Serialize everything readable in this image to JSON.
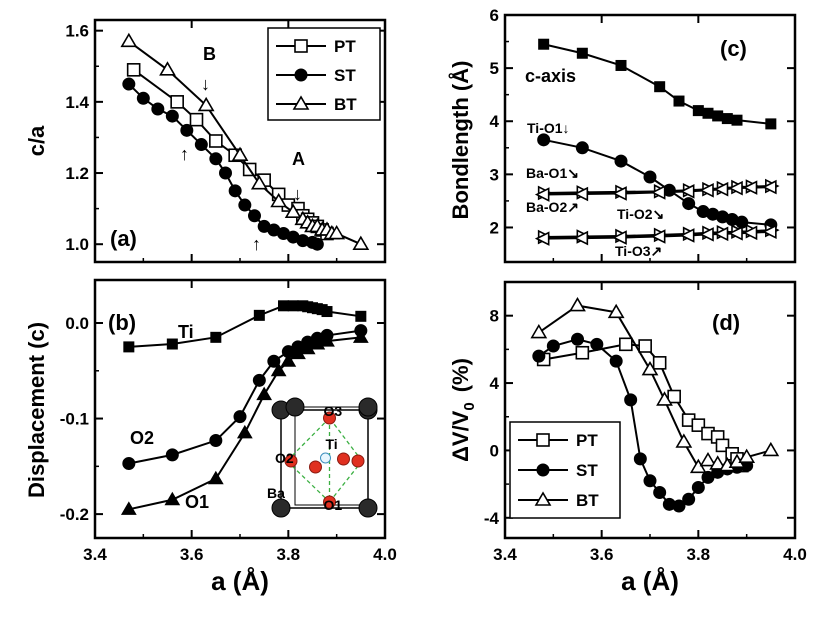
{
  "chart_data": [
    {
      "type": "line",
      "panel": "(a)",
      "ylabel": "c/a",
      "xlim": [
        3.4,
        4.0
      ],
      "ylim": [
        0.95,
        1.63
      ],
      "xticks": [
        "3.4",
        "3.6",
        "3.8",
        "4.0"
      ],
      "yticks": [
        {
          "v": 1.0,
          "t": "1.0"
        },
        {
          "v": 1.2,
          "t": "1.2"
        },
        {
          "v": 1.4,
          "t": "1.4"
        },
        {
          "v": 1.6,
          "t": "1.6"
        }
      ],
      "legend": "top-right",
      "series": [
        {
          "name": "PT",
          "marker": "open-square",
          "x": [
            3.48,
            3.57,
            3.61,
            3.65,
            3.69,
            3.72,
            3.75,
            3.78,
            3.8,
            3.82,
            3.83,
            3.84,
            3.85,
            3.86,
            3.87,
            3.88
          ],
          "y": [
            1.49,
            1.4,
            1.35,
            1.29,
            1.25,
            1.21,
            1.18,
            1.14,
            1.11,
            1.1,
            1.08,
            1.07,
            1.06,
            1.05,
            1.04,
            1.03
          ]
        },
        {
          "name": "ST",
          "marker": "filled-circle",
          "x": [
            3.47,
            3.5,
            3.53,
            3.56,
            3.59,
            3.62,
            3.65,
            3.67,
            3.69,
            3.71,
            3.73,
            3.75,
            3.77,
            3.79,
            3.81,
            3.83,
            3.85,
            3.86
          ],
          "y": [
            1.45,
            1.41,
            1.38,
            1.36,
            1.32,
            1.28,
            1.24,
            1.2,
            1.15,
            1.11,
            1.08,
            1.05,
            1.04,
            1.03,
            1.02,
            1.01,
            1.005,
            1.0
          ]
        },
        {
          "name": "BT",
          "marker": "open-triangle",
          "x": [
            3.47,
            3.55,
            3.63,
            3.7,
            3.74,
            3.78,
            3.81,
            3.83,
            3.84,
            3.85,
            3.86,
            3.87,
            3.88,
            3.89,
            3.9,
            3.95
          ],
          "y": [
            1.57,
            1.49,
            1.39,
            1.25,
            1.17,
            1.12,
            1.09,
            1.07,
            1.06,
            1.05,
            1.05,
            1.04,
            1.04,
            1.03,
            1.03,
            1.0
          ]
        }
      ],
      "annotations": [
        {
          "text": "B",
          "arrow": "↓"
        },
        {
          "text": "A",
          "arrow": "↓"
        },
        {
          "text": "",
          "arrow": "↑"
        },
        {
          "text": "",
          "arrow": "↑"
        }
      ]
    },
    {
      "type": "line",
      "panel": "(b)",
      "ylabel": "Displacement  (c)",
      "xlabel": "a (Å)",
      "xlim": [
        3.4,
        4.0
      ],
      "ylim": [
        -0.225,
        0.045
      ],
      "xticks": [
        "3.4",
        "3.6",
        "3.8",
        "4.0"
      ],
      "yticks": [
        {
          "v": 0.0,
          "t": "0.0"
        },
        {
          "v": -0.1,
          "t": "-0.1"
        },
        {
          "v": -0.2,
          "t": "-0.2"
        }
      ],
      "series": [
        {
          "name": "Ti",
          "marker": "filled-square",
          "x": [
            3.47,
            3.56,
            3.65,
            3.74,
            3.79,
            3.81,
            3.83,
            3.84,
            3.85,
            3.86,
            3.87,
            3.88,
            3.95
          ],
          "y": [
            -0.025,
            -0.022,
            -0.015,
            0.008,
            0.018,
            0.018,
            0.018,
            0.017,
            0.016,
            0.015,
            0.014,
            0.012,
            0.007
          ]
        },
        {
          "name": "O2",
          "marker": "filled-circle",
          "x": [
            3.47,
            3.56,
            3.65,
            3.7,
            3.74,
            3.77,
            3.8,
            3.82,
            3.84,
            3.86,
            3.88,
            3.95
          ],
          "y": [
            -0.147,
            -0.138,
            -0.123,
            -0.098,
            -0.06,
            -0.04,
            -0.03,
            -0.025,
            -0.02,
            -0.016,
            -0.013,
            -0.008
          ]
        },
        {
          "name": "O1",
          "marker": "filled-triangle",
          "x": [
            3.47,
            3.56,
            3.65,
            3.71,
            3.75,
            3.78,
            3.8,
            3.82,
            3.84,
            3.86,
            3.88,
            3.95
          ],
          "y": [
            -0.195,
            -0.185,
            -0.163,
            -0.115,
            -0.075,
            -0.05,
            -0.04,
            -0.032,
            -0.027,
            -0.022,
            -0.019,
            -0.015
          ]
        }
      ],
      "inset": {
        "labels": [
          "O3",
          "Ti",
          "O2",
          "Ba",
          "O1"
        ]
      }
    },
    {
      "type": "line",
      "panel": "(c)",
      "ylabel": "Bondlength  (Å)",
      "xlim": [
        3.4,
        4.0
      ],
      "ylim": [
        1.35,
        6.0
      ],
      "xticks": [
        "3.4",
        "3.6",
        "3.8",
        "4.0"
      ],
      "yticks": [
        {
          "v": 2,
          "t": "2"
        },
        {
          "v": 3,
          "t": "3"
        },
        {
          "v": 4,
          "t": "4"
        },
        {
          "v": 5,
          "t": "5"
        },
        {
          "v": 6,
          "t": "6"
        }
      ],
      "series": [
        {
          "name": "c-axis",
          "marker": "filled-square",
          "x": [
            3.48,
            3.56,
            3.64,
            3.72,
            3.76,
            3.8,
            3.82,
            3.84,
            3.86,
            3.88,
            3.95
          ],
          "y": [
            5.45,
            5.28,
            5.05,
            4.65,
            4.38,
            4.2,
            4.15,
            4.1,
            4.05,
            4.02,
            3.95
          ]
        },
        {
          "name": "Ti-O1↓",
          "marker": "filled-circle",
          "x": [
            3.48,
            3.56,
            3.64,
            3.7,
            3.74,
            3.78,
            3.81,
            3.83,
            3.85,
            3.87,
            3.89,
            3.95
          ],
          "y": [
            3.65,
            3.5,
            3.25,
            2.95,
            2.7,
            2.45,
            2.3,
            2.25,
            2.2,
            2.15,
            2.1,
            2.05
          ]
        },
        {
          "name": "Ba-O1↘",
          "marker": "right-triangle",
          "x": [
            3.48,
            3.56,
            3.64,
            3.72,
            3.78,
            3.82,
            3.85,
            3.88,
            3.91,
            3.95
          ],
          "y": [
            2.65,
            2.66,
            2.67,
            2.68,
            2.7,
            2.72,
            2.74,
            2.76,
            2.77,
            2.78
          ]
        },
        {
          "name": "Ba-O2↗",
          "marker": "left-triangle",
          "x": [
            3.48,
            3.56,
            3.64,
            3.72,
            3.78,
            3.82,
            3.85,
            3.88,
            3.91,
            3.95
          ],
          "y": [
            2.62,
            2.63,
            2.64,
            2.66,
            2.68,
            2.7,
            2.72,
            2.74,
            2.75,
            2.76
          ]
        },
        {
          "name": "Ti-O2↘",
          "marker": "right-triangle",
          "x": [
            3.48,
            3.56,
            3.64,
            3.72,
            3.78,
            3.82,
            3.85,
            3.88,
            3.91,
            3.95
          ],
          "y": [
            1.82,
            1.83,
            1.84,
            1.86,
            1.88,
            1.9,
            1.91,
            1.92,
            1.93,
            1.95
          ]
        },
        {
          "name": "Ti-O3↗",
          "marker": "left-triangle",
          "x": [
            3.48,
            3.56,
            3.64,
            3.72,
            3.78,
            3.82,
            3.85,
            3.88,
            3.91,
            3.95
          ],
          "y": [
            1.79,
            1.8,
            1.81,
            1.83,
            1.85,
            1.87,
            1.88,
            1.89,
            1.9,
            1.92
          ]
        }
      ]
    },
    {
      "type": "line",
      "panel": "(d)",
      "ylabel": "ΔV/V0  (%)",
      "ylabel_main": "ΔV/V",
      "ylabel_sub": "0",
      "ylabel_unit": "(%)",
      "xlabel": "a (Å)",
      "xlim": [
        3.4,
        4.0
      ],
      "ylim": [
        -5.2,
        10.0
      ],
      "xticks": [
        "3.4",
        "3.6",
        "3.8",
        "4.0"
      ],
      "yticks": [
        {
          "v": -4,
          "t": "-4"
        },
        {
          "v": 0,
          "t": "0"
        },
        {
          "v": 4,
          "t": "4"
        },
        {
          "v": 8,
          "t": "8"
        }
      ],
      "legend": "bottom-left",
      "series": [
        {
          "name": "PT",
          "marker": "open-square",
          "x": [
            3.48,
            3.56,
            3.65,
            3.69,
            3.72,
            3.75,
            3.78,
            3.8,
            3.82,
            3.84,
            3.85,
            3.87,
            3.88,
            3.89
          ],
          "y": [
            5.4,
            5.8,
            6.3,
            6.2,
            5.2,
            3.2,
            1.8,
            1.5,
            1.0,
            0.8,
            0.3,
            -0.2,
            -0.5,
            -0.9
          ]
        },
        {
          "name": "ST",
          "marker": "filled-circle",
          "x": [
            3.47,
            3.5,
            3.55,
            3.59,
            3.63,
            3.66,
            3.68,
            3.7,
            3.72,
            3.74,
            3.76,
            3.78,
            3.8,
            3.82,
            3.84,
            3.86,
            3.88,
            3.9
          ],
          "y": [
            5.6,
            6.2,
            6.6,
            6.3,
            5.3,
            3.0,
            -0.5,
            -1.8,
            -2.5,
            -3.2,
            -3.3,
            -2.9,
            -2.2,
            -1.6,
            -1.3,
            -1.1,
            -1.0,
            -0.9
          ]
        },
        {
          "name": "BT",
          "marker": "open-triangle",
          "x": [
            3.47,
            3.55,
            3.63,
            3.7,
            3.73,
            3.77,
            3.8,
            3.82,
            3.84,
            3.86,
            3.88,
            3.9,
            3.95
          ],
          "y": [
            7.0,
            8.6,
            8.2,
            4.8,
            3.0,
            0.5,
            -1.0,
            -0.6,
            -0.8,
            -0.9,
            -0.7,
            -0.4,
            0.0
          ]
        }
      ]
    }
  ]
}
